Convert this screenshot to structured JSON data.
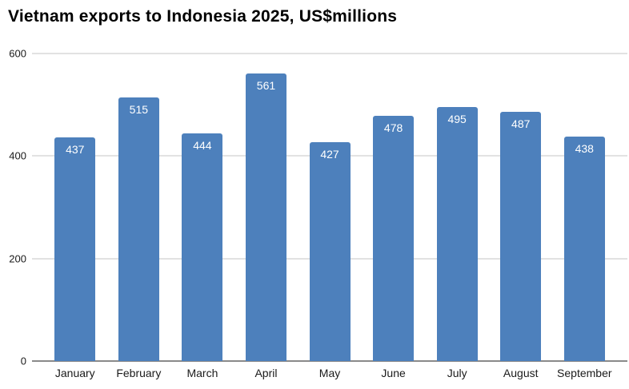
{
  "title": "Vietnam exports to Indonesia 2025, US$millions",
  "chart_data": {
    "type": "bar",
    "title": "Vietnam exports to Indonesia 2025, US$millions",
    "categories": [
      "January",
      "February",
      "March",
      "April",
      "May",
      "June",
      "July",
      "August",
      "September"
    ],
    "values": [
      437,
      515,
      444,
      561,
      427,
      478,
      495,
      487,
      438
    ],
    "xlabel": "",
    "ylabel": "",
    "ylim": [
      0,
      600
    ],
    "yticks": [
      0,
      200,
      400,
      600
    ],
    "grid": true,
    "legend": false,
    "legend_position": "none",
    "bar_color": "#4d80bc",
    "bar_label_color": "#ffffff",
    "gridline_color": "#e2e2e2",
    "baseline_color": "#8a8a8a",
    "text_color": "#1a1a1a"
  }
}
